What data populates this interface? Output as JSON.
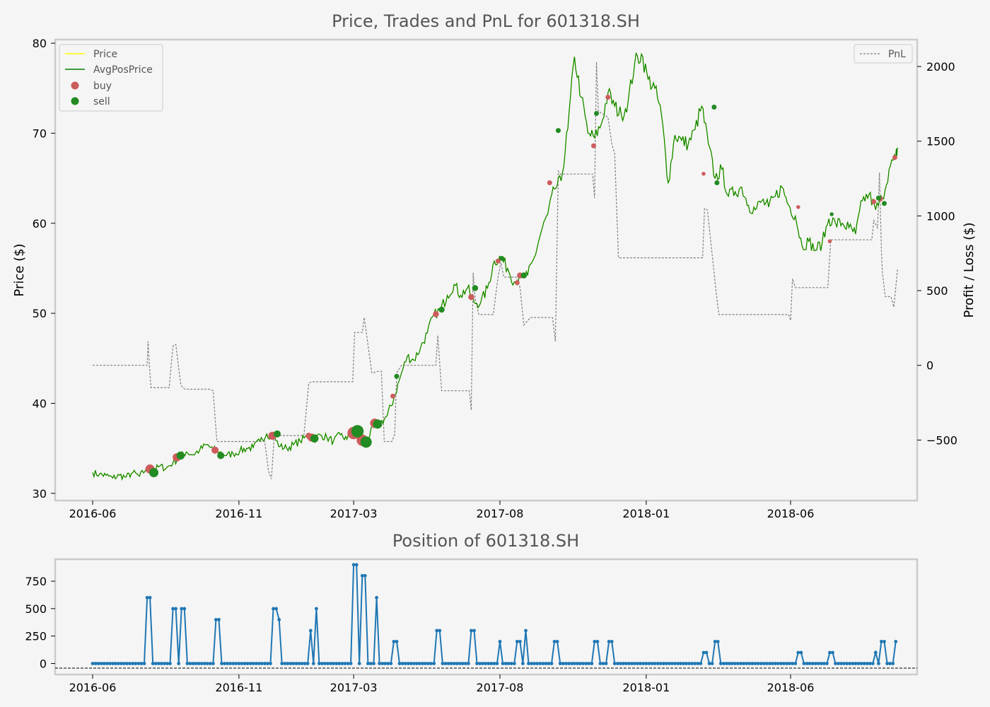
{
  "chart_data": [
    {
      "type": "line",
      "title": "Price, Trades and PnL for 601318.SH",
      "ylabel": "Price ($)",
      "y2label": "Profit / Loss ($)",
      "ylim": [
        29.2,
        80.4
      ],
      "y2lim": [
        -905,
        2180
      ],
      "x_ticks": [
        "2016-06",
        "2016-11",
        "2017-03",
        "2017-08",
        "2018-01",
        "2018-06"
      ],
      "y_ticks": [
        30,
        40,
        50,
        60,
        70,
        80
      ],
      "y2_ticks": [
        -500,
        0,
        500,
        1000,
        1500,
        2000
      ],
      "y2_tick_labels": [
        "−500",
        "0",
        "500",
        "1000",
        "1500",
        "2000"
      ],
      "legend_left": [
        "Price",
        "AvgPosPrice",
        "buy",
        "sell"
      ],
      "legend_right": [
        "PnL"
      ],
      "colors": {
        "price": "#ffff00",
        "avg": "#008000",
        "buy": "#cd5c5c",
        "sell": "#228b22",
        "pnl": "#808080"
      },
      "price_key": [
        [
          "2016-06-01",
          32.3
        ],
        [
          "2016-06-08",
          32.1
        ],
        [
          "2016-06-15",
          32.0
        ],
        [
          "2016-06-22",
          31.7
        ],
        [
          "2016-06-29",
          32.0
        ],
        [
          "2016-07-06",
          31.8
        ],
        [
          "2016-07-13",
          32.3
        ],
        [
          "2016-07-20",
          31.9
        ],
        [
          "2016-07-27",
          32.7
        ],
        [
          "2016-08-03",
          32.5
        ],
        [
          "2016-08-10",
          33.0
        ],
        [
          "2016-08-17",
          32.8
        ],
        [
          "2016-08-24",
          33.4
        ],
        [
          "2016-08-31",
          34.0
        ],
        [
          "2016-09-07",
          34.6
        ],
        [
          "2016-09-14",
          34.3
        ],
        [
          "2016-09-21",
          34.8
        ],
        [
          "2016-09-28",
          35.4
        ],
        [
          "2016-10-05",
          34.9
        ],
        [
          "2016-10-12",
          34.6
        ],
        [
          "2016-10-19",
          34.2
        ],
        [
          "2016-10-26",
          34.4
        ],
        [
          "2016-11-02",
          34.7
        ],
        [
          "2016-11-09",
          35.0
        ],
        [
          "2016-11-16",
          35.1
        ],
        [
          "2016-11-23",
          35.8
        ],
        [
          "2016-11-30",
          36.6
        ],
        [
          "2016-12-07",
          36.3
        ],
        [
          "2016-12-14",
          35.2
        ],
        [
          "2016-12-21",
          35.0
        ],
        [
          "2016-12-28",
          35.4
        ],
        [
          "2017-01-04",
          35.8
        ],
        [
          "2017-01-11",
          36.3
        ],
        [
          "2017-01-18",
          36.0
        ],
        [
          "2017-01-25",
          36.5
        ],
        [
          "2017-02-01",
          36.2
        ],
        [
          "2017-02-08",
          35.8
        ],
        [
          "2017-02-15",
          36.5
        ],
        [
          "2017-02-22",
          36.0
        ],
        [
          "2017-03-01",
          36.8
        ],
        [
          "2017-03-08",
          36.6
        ],
        [
          "2017-03-15",
          36.0
        ],
        [
          "2017-03-22",
          37.3
        ],
        [
          "2017-03-29",
          37.8
        ],
        [
          "2017-04-05",
          38.6
        ],
        [
          "2017-04-12",
          40.5
        ],
        [
          "2017-04-19",
          43.0
        ],
        [
          "2017-04-26",
          45.2
        ],
        [
          "2017-05-03",
          44.8
        ],
        [
          "2017-05-10",
          46.2
        ],
        [
          "2017-05-17",
          47.8
        ],
        [
          "2017-05-24",
          49.8
        ],
        [
          "2017-05-31",
          50.4
        ],
        [
          "2017-06-07",
          52.0
        ],
        [
          "2017-06-14",
          53.2
        ],
        [
          "2017-06-21",
          52.0
        ],
        [
          "2017-06-28",
          52.8
        ],
        [
          "2017-07-05",
          51.2
        ],
        [
          "2017-07-12",
          51.2
        ],
        [
          "2017-07-19",
          52.8
        ],
        [
          "2017-07-26",
          55.8
        ],
        [
          "2017-08-02",
          56.2
        ],
        [
          "2017-08-09",
          55.0
        ],
        [
          "2017-08-16",
          53.5
        ],
        [
          "2017-08-23",
          54.0
        ],
        [
          "2017-08-30",
          54.2
        ],
        [
          "2017-09-06",
          56.2
        ],
        [
          "2017-09-13",
          59.0
        ],
        [
          "2017-09-20",
          61.0
        ],
        [
          "2017-09-27",
          63.8
        ],
        [
          "2017-10-04",
          64.7
        ],
        [
          "2017-10-11",
          70.5
        ],
        [
          "2017-10-18",
          78.5
        ],
        [
          "2017-10-25",
          74.0
        ],
        [
          "2017-11-01",
          70.0
        ],
        [
          "2017-11-08",
          69.5
        ],
        [
          "2017-11-15",
          71.0
        ],
        [
          "2017-11-22",
          74.5
        ],
        [
          "2017-11-29",
          73.0
        ],
        [
          "2017-12-06",
          72.0
        ],
        [
          "2017-12-13",
          73.5
        ],
        [
          "2017-12-20",
          77.8
        ],
        [
          "2017-12-27",
          78.8
        ],
        [
          "2018-01-03",
          76.0
        ],
        [
          "2018-01-10",
          75.0
        ],
        [
          "2018-01-17",
          72.0
        ],
        [
          "2018-01-24",
          64.5
        ],
        [
          "2018-01-31",
          69.8
        ],
        [
          "2018-02-07",
          69.2
        ],
        [
          "2018-02-14",
          68.8
        ],
        [
          "2018-02-21",
          70.4
        ],
        [
          "2018-02-28",
          73.0
        ],
        [
          "2018-03-07",
          68.8
        ],
        [
          "2018-03-14",
          65.0
        ],
        [
          "2018-03-21",
          66.0
        ],
        [
          "2018-03-28",
          63.0
        ],
        [
          "2018-04-04",
          63.5
        ],
        [
          "2018-04-11",
          64.0
        ],
        [
          "2018-04-18",
          62.0
        ],
        [
          "2018-04-25",
          61.5
        ],
        [
          "2018-05-02",
          62.5
        ],
        [
          "2018-05-09",
          61.8
        ],
        [
          "2018-05-16",
          63.0
        ],
        [
          "2018-05-23",
          64.0
        ],
        [
          "2018-05-30",
          62.0
        ],
        [
          "2018-06-06",
          60.8
        ],
        [
          "2018-06-13",
          57.5
        ],
        [
          "2018-06-20",
          58.0
        ],
        [
          "2018-06-27",
          57.0
        ],
        [
          "2018-07-04",
          57.8
        ],
        [
          "2018-07-11",
          60.5
        ],
        [
          "2018-07-18",
          60.0
        ],
        [
          "2018-07-25",
          60.0
        ],
        [
          "2018-08-01",
          59.5
        ],
        [
          "2018-08-08",
          58.8
        ],
        [
          "2018-08-15",
          62.5
        ],
        [
          "2018-08-22",
          63.2
        ],
        [
          "2018-08-29",
          61.5
        ],
        [
          "2018-09-05",
          62.8
        ],
        [
          "2018-09-12",
          66.0
        ],
        [
          "2018-09-19",
          67.3
        ],
        [
          "2018-09-21",
          68.4
        ]
      ],
      "pnl_steps": [
        [
          "2016-06-01",
          0
        ],
        [
          "2016-07-28",
          0
        ],
        [
          "2016-07-29",
          160
        ],
        [
          "2016-07-30",
          30
        ],
        [
          "2016-08-01",
          -150
        ],
        [
          "2016-08-20",
          -150
        ],
        [
          "2016-08-24",
          130
        ],
        [
          "2016-08-27",
          140
        ],
        [
          "2016-09-01",
          -120
        ],
        [
          "2016-09-03",
          -150
        ],
        [
          "2016-09-06",
          -160
        ],
        [
          "2016-09-08",
          -160
        ],
        [
          "2016-09-10",
          -160
        ],
        [
          "2016-09-14",
          -160
        ],
        [
          "2016-09-18",
          -160
        ],
        [
          "2016-09-25",
          -160
        ],
        [
          "2016-10-02",
          -160
        ],
        [
          "2016-10-05",
          -170
        ],
        [
          "2016-10-07",
          -350
        ],
        [
          "2016-10-09",
          -510
        ],
        [
          "2016-10-13",
          -510
        ],
        [
          "2016-11-10",
          -510
        ],
        [
          "2016-11-28",
          -510
        ],
        [
          "2016-12-02",
          -710
        ],
        [
          "2016-12-05",
          -760
        ],
        [
          "2016-12-08",
          -470
        ],
        [
          "2016-12-15",
          -470
        ],
        [
          "2017-01-02",
          -470
        ],
        [
          "2017-01-08",
          -470
        ],
        [
          "2017-01-10",
          -330
        ],
        [
          "2017-01-13",
          -120
        ],
        [
          "2017-01-16",
          -110
        ],
        [
          "2017-02-20",
          -110
        ],
        [
          "2017-02-28",
          -110
        ],
        [
          "2017-03-02",
          220
        ],
        [
          "2017-03-10",
          220
        ],
        [
          "2017-03-12",
          320
        ],
        [
          "2017-03-14",
          230
        ],
        [
          "2017-03-20",
          -50
        ],
        [
          "2017-03-22",
          -50
        ],
        [
          "2017-03-26",
          -40
        ],
        [
          "2017-03-30",
          -40
        ],
        [
          "2017-04-02",
          -510
        ],
        [
          "2017-04-10",
          -510
        ],
        [
          "2017-04-13",
          -460
        ],
        [
          "2017-04-15",
          -50
        ],
        [
          "2017-04-20",
          0
        ],
        [
          "2017-05-26",
          0
        ],
        [
          "2017-05-28",
          200
        ],
        [
          "2017-06-01",
          -170
        ],
        [
          "2017-06-30",
          -170
        ],
        [
          "2017-07-02",
          -300
        ],
        [
          "2017-07-04",
          620
        ],
        [
          "2017-07-06",
          450
        ],
        [
          "2017-07-10",
          340
        ],
        [
          "2017-07-25",
          340
        ],
        [
          "2017-07-30",
          590
        ],
        [
          "2017-08-02",
          690
        ],
        [
          "2017-08-05",
          590
        ],
        [
          "2017-08-18",
          590
        ],
        [
          "2017-08-22",
          520
        ],
        [
          "2017-08-26",
          270
        ],
        [
          "2017-09-02",
          320
        ],
        [
          "2017-09-05",
          320
        ],
        [
          "2017-09-25",
          320
        ],
        [
          "2017-09-28",
          160
        ],
        [
          "2017-10-01",
          1300
        ],
        [
          "2017-10-03",
          1280
        ],
        [
          "2017-10-06",
          1280
        ],
        [
          "2017-11-06",
          1280
        ],
        [
          "2017-11-08",
          1120
        ],
        [
          "2017-11-10",
          2030
        ],
        [
          "2017-11-12",
          1700
        ],
        [
          "2017-11-22",
          1660
        ],
        [
          "2017-11-26",
          1480
        ],
        [
          "2017-11-29",
          1420
        ],
        [
          "2017-12-03",
          720
        ],
        [
          "2018-03-01",
          720
        ],
        [
          "2018-03-03",
          1050
        ],
        [
          "2018-03-06",
          1040
        ],
        [
          "2018-03-15",
          500
        ],
        [
          "2018-03-18",
          340
        ],
        [
          "2018-05-30",
          340
        ],
        [
          "2018-06-01",
          300
        ],
        [
          "2018-06-03",
          580
        ],
        [
          "2018-06-06",
          520
        ],
        [
          "2018-07-10",
          520
        ],
        [
          "2018-07-13",
          840
        ],
        [
          "2018-08-25",
          840
        ],
        [
          "2018-08-27",
          970
        ],
        [
          "2018-08-31",
          920
        ],
        [
          "2018-09-02",
          1290
        ],
        [
          "2018-09-04",
          770
        ],
        [
          "2018-09-05",
          620
        ],
        [
          "2018-09-08",
          460
        ],
        [
          "2018-09-14",
          460
        ],
        [
          "2018-09-17",
          390
        ],
        [
          "2018-09-19",
          520
        ],
        [
          "2018-09-21",
          650
        ]
      ],
      "buys": [
        [
          "2016-07-31",
          32.7,
          6
        ],
        [
          "2016-08-28",
          34.0,
          5
        ],
        [
          "2016-10-07",
          34.8,
          4
        ],
        [
          "2016-12-06",
          36.4,
          5
        ],
        [
          "2017-01-13",
          36.4,
          3
        ],
        [
          "2017-01-16",
          36.2,
          5
        ],
        [
          "2017-03-01",
          36.7,
          9
        ],
        [
          "2017-03-10",
          35.9,
          8
        ],
        [
          "2017-03-23",
          37.8,
          6
        ],
        [
          "2017-04-11",
          40.8,
          2
        ],
        [
          "2017-05-26",
          49.9,
          3
        ],
        [
          "2017-07-02",
          51.8,
          3
        ],
        [
          "2017-07-30",
          55.8,
          2
        ],
        [
          "2017-08-19",
          53.4,
          2
        ],
        [
          "2017-08-22",
          54.2,
          3
        ],
        [
          "2017-09-22",
          64.5,
          2
        ],
        [
          "2017-11-07",
          68.6,
          2
        ],
        [
          "2017-11-22",
          74.0,
          2
        ],
        [
          "2018-03-02",
          65.5,
          1
        ],
        [
          "2018-06-09",
          61.8,
          1
        ],
        [
          "2018-07-12",
          58.0,
          1
        ],
        [
          "2018-08-27",
          62.4,
          2
        ],
        [
          "2018-09-03",
          62.7,
          2
        ],
        [
          "2018-09-18",
          67.3,
          2
        ]
      ],
      "sells": [
        [
          "2016-08-04",
          32.3,
          6
        ],
        [
          "2016-09-01",
          34.2,
          5
        ],
        [
          "2016-10-13",
          34.2,
          4
        ],
        [
          "2016-12-11",
          36.6,
          4
        ],
        [
          "2017-01-19",
          36.1,
          5
        ],
        [
          "2017-03-05",
          36.9,
          9
        ],
        [
          "2017-03-14",
          35.7,
          8
        ],
        [
          "2017-03-26",
          37.7,
          6
        ],
        [
          "2017-04-15",
          43.0,
          2
        ],
        [
          "2017-06-01",
          50.4,
          3
        ],
        [
          "2017-07-06",
          52.8,
          3
        ],
        [
          "2017-08-03",
          56.1,
          2
        ],
        [
          "2017-08-26",
          54.2,
          3
        ],
        [
          "2017-10-01",
          70.3,
          2
        ],
        [
          "2017-11-10",
          72.2,
          2
        ],
        [
          "2018-03-13",
          72.9,
          2
        ],
        [
          "2018-03-16",
          64.5,
          2
        ],
        [
          "2018-07-14",
          61.0,
          1
        ],
        [
          "2018-09-01",
          62.8,
          2
        ],
        [
          "2018-09-07",
          62.2,
          2
        ]
      ]
    },
    {
      "type": "line",
      "title": "Position of 601318.SH",
      "ylim": [
        -100,
        950
      ],
      "x_ticks": [
        "2016-06",
        "2016-11",
        "2017-03",
        "2017-08",
        "2018-01",
        "2018-06"
      ],
      "y_ticks": [
        0,
        250,
        500,
        750
      ],
      "color": "#1f77b4",
      "positions": [
        [
          "2016-07-28",
          600
        ],
        [
          "2016-08-24",
          500
        ],
        [
          "2016-09-01",
          500
        ],
        [
          "2016-10-07",
          400
        ],
        [
          "2016-12-06",
          500
        ],
        [
          "2016-12-11",
          400
        ],
        [
          "2017-01-13",
          300
        ],
        [
          "2017-01-19",
          500
        ],
        [
          "2017-03-01",
          900
        ],
        [
          "2017-03-10",
          800
        ],
        [
          "2017-03-23",
          600
        ],
        [
          "2017-04-11",
          200
        ],
        [
          "2017-05-26",
          300
        ],
        [
          "2017-07-02",
          300
        ],
        [
          "2017-07-30",
          200
        ],
        [
          "2017-08-19",
          200
        ],
        [
          "2017-08-26",
          300
        ],
        [
          "2017-09-27",
          200
        ],
        [
          "2017-11-07",
          200
        ],
        [
          "2017-11-22",
          200
        ],
        [
          "2018-03-02",
          100
        ],
        [
          "2018-03-13",
          200
        ],
        [
          "2018-06-09",
          100
        ],
        [
          "2018-07-12",
          100
        ],
        [
          "2018-08-27",
          100
        ],
        [
          "2018-09-03",
          200
        ],
        [
          "2018-09-18",
          200
        ]
      ]
    }
  ]
}
